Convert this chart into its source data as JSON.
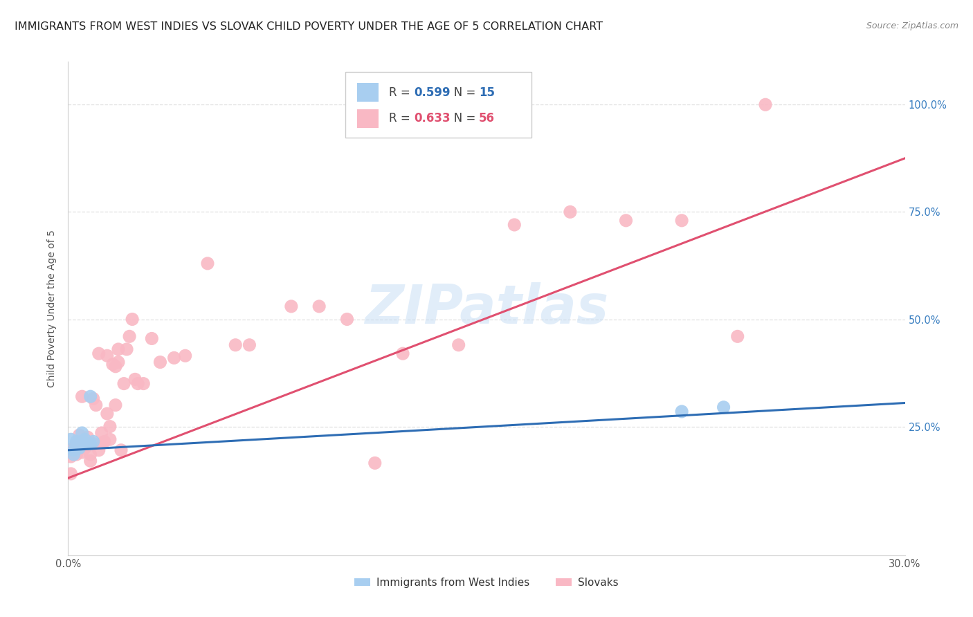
{
  "title": "IMMIGRANTS FROM WEST INDIES VS SLOVAK CHILD POVERTY UNDER THE AGE OF 5 CORRELATION CHART",
  "source": "Source: ZipAtlas.com",
  "ylabel": "Child Poverty Under the Age of 5",
  "xlim": [
    0.0,
    0.3
  ],
  "ylim": [
    -0.05,
    1.1
  ],
  "ytick_labels": [
    "25.0%",
    "50.0%",
    "75.0%",
    "100.0%"
  ],
  "ytick_positions": [
    0.25,
    0.5,
    0.75,
    1.0
  ],
  "grid_color": "#e0e0e0",
  "background_color": "#ffffff",
  "watermark_text": "ZIPatlas",
  "blue_series": {
    "label": "Immigrants from West Indies",
    "R": "0.599",
    "N": "15",
    "color": "#a8cef0",
    "line_color": "#2e6db4",
    "x": [
      0.001,
      0.002,
      0.002,
      0.003,
      0.003,
      0.004,
      0.004,
      0.005,
      0.006,
      0.007,
      0.008,
      0.008,
      0.009,
      0.22,
      0.235
    ],
    "y": [
      0.22,
      0.195,
      0.185,
      0.2,
      0.215,
      0.2,
      0.21,
      0.235,
      0.22,
      0.21,
      0.32,
      0.21,
      0.215,
      0.285,
      0.295
    ],
    "line_x0": 0.0,
    "line_y0": 0.195,
    "line_x1": 0.3,
    "line_y1": 0.305
  },
  "pink_series": {
    "label": "Slovaks",
    "R": "0.633",
    "N": "56",
    "color": "#f9b8c4",
    "line_color": "#e05070",
    "x": [
      0.001,
      0.001,
      0.002,
      0.003,
      0.003,
      0.004,
      0.005,
      0.005,
      0.006,
      0.007,
      0.008,
      0.008,
      0.009,
      0.009,
      0.01,
      0.011,
      0.011,
      0.012,
      0.012,
      0.013,
      0.014,
      0.014,
      0.015,
      0.015,
      0.016,
      0.017,
      0.017,
      0.018,
      0.018,
      0.019,
      0.02,
      0.021,
      0.022,
      0.023,
      0.024,
      0.025,
      0.027,
      0.03,
      0.033,
      0.038,
      0.042,
      0.05,
      0.06,
      0.065,
      0.08,
      0.09,
      0.1,
      0.11,
      0.12,
      0.14,
      0.16,
      0.18,
      0.2,
      0.22,
      0.24,
      0.25
    ],
    "y": [
      0.18,
      0.14,
      0.2,
      0.21,
      0.185,
      0.23,
      0.19,
      0.32,
      0.2,
      0.225,
      0.185,
      0.17,
      0.21,
      0.315,
      0.3,
      0.195,
      0.42,
      0.21,
      0.235,
      0.215,
      0.28,
      0.415,
      0.25,
      0.22,
      0.395,
      0.3,
      0.39,
      0.4,
      0.43,
      0.195,
      0.35,
      0.43,
      0.46,
      0.5,
      0.36,
      0.35,
      0.35,
      0.455,
      0.4,
      0.41,
      0.415,
      0.63,
      0.44,
      0.44,
      0.53,
      0.53,
      0.5,
      0.165,
      0.42,
      0.44,
      0.72,
      0.75,
      0.73,
      0.73,
      0.46,
      1.0
    ],
    "line_x0": 0.0,
    "line_y0": 0.13,
    "line_x1": 0.3,
    "line_y1": 0.875
  },
  "legend_border_color": "#cccccc",
  "title_fontsize": 11.5,
  "axis_label_fontsize": 10,
  "tick_fontsize": 10.5,
  "legend_fontsize": 12
}
